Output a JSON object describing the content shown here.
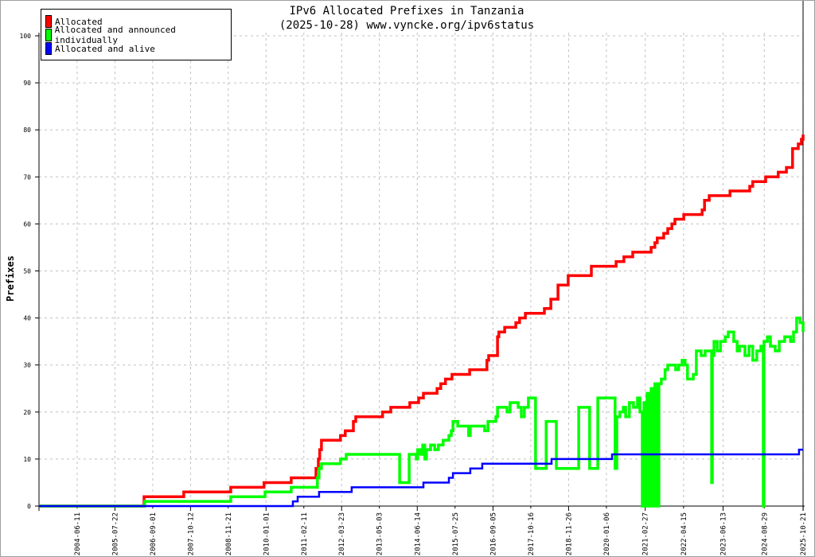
{
  "chart_data": {
    "type": "line",
    "title": "IPv6 Allocated Prefixes in Tanzania",
    "subtitle": "(2025-10-28) www.vyncke.org/ipv6status",
    "xlabel": "",
    "ylabel": "Prefixes",
    "ylim": [
      0,
      100
    ],
    "xlim": [
      2003.32,
      2025.8
    ],
    "grid": true,
    "legend_position": "top-left",
    "y_ticks": [
      "0",
      "10",
      "20",
      "30",
      "40",
      "50",
      "60",
      "70",
      "80",
      "90",
      "100"
    ],
    "x_ticks": [
      "2004-06-11",
      "2005-07-22",
      "2006-09-01",
      "2007-10-12",
      "2008-11-21",
      "2010-01-01",
      "2011-02-11",
      "2012-03-23",
      "2013-05-03",
      "2014-06-14",
      "2015-07-25",
      "2016-09-05",
      "2017-10-16",
      "2018-11-26",
      "2020-01-06",
      "2021-02-27",
      "2022-04-15",
      "2023-06-13",
      "2024-08-29",
      "2025-10-21"
    ],
    "series": [
      {
        "name": "Allocated",
        "color": "#ff0000",
        "points": [
          [
            2003.32,
            0
          ],
          [
            2006.41,
            2
          ],
          [
            2007.58,
            3
          ],
          [
            2008.96,
            4
          ],
          [
            2009.94,
            5
          ],
          [
            2010.74,
            6
          ],
          [
            2011.47,
            8
          ],
          [
            2011.54,
            10
          ],
          [
            2011.58,
            12
          ],
          [
            2011.63,
            14
          ],
          [
            2012.19,
            15
          ],
          [
            2012.33,
            16
          ],
          [
            2012.57,
            18
          ],
          [
            2012.64,
            19
          ],
          [
            2013.43,
            20
          ],
          [
            2013.67,
            21
          ],
          [
            2014.23,
            22
          ],
          [
            2014.49,
            23
          ],
          [
            2014.63,
            24
          ],
          [
            2015.03,
            25
          ],
          [
            2015.14,
            26
          ],
          [
            2015.28,
            27
          ],
          [
            2015.47,
            28
          ],
          [
            2015.99,
            29
          ],
          [
            2016.5,
            31
          ],
          [
            2016.55,
            32
          ],
          [
            2016.81,
            36
          ],
          [
            2016.85,
            37
          ],
          [
            2017.02,
            38
          ],
          [
            2017.35,
            39
          ],
          [
            2017.46,
            40
          ],
          [
            2017.63,
            41
          ],
          [
            2018.19,
            42
          ],
          [
            2018.38,
            44
          ],
          [
            2018.59,
            47
          ],
          [
            2018.89,
            49
          ],
          [
            2019.57,
            51
          ],
          [
            2020.3,
            52
          ],
          [
            2020.53,
            53
          ],
          [
            2020.79,
            54
          ],
          [
            2021.33,
            55
          ],
          [
            2021.44,
            56
          ],
          [
            2021.51,
            57
          ],
          [
            2021.7,
            58
          ],
          [
            2021.82,
            59
          ],
          [
            2021.94,
            60
          ],
          [
            2022.03,
            61
          ],
          [
            2022.29,
            62
          ],
          [
            2022.83,
            63
          ],
          [
            2022.9,
            65
          ],
          [
            2023.04,
            66
          ],
          [
            2023.65,
            67
          ],
          [
            2024.23,
            68
          ],
          [
            2024.32,
            69
          ],
          [
            2024.7,
            70
          ],
          [
            2025.07,
            71
          ],
          [
            2025.31,
            72
          ],
          [
            2025.49,
            76
          ],
          [
            2025.66,
            77
          ],
          [
            2025.75,
            78
          ],
          [
            2025.8,
            79
          ]
        ]
      },
      {
        "name": "Allocated and announced individually",
        "color": "#00ff00",
        "points": [
          [
            2003.32,
            0
          ],
          [
            2006.43,
            1
          ],
          [
            2008.96,
            2
          ],
          [
            2009.97,
            3
          ],
          [
            2010.74,
            4
          ],
          [
            2011.51,
            6
          ],
          [
            2011.56,
            8
          ],
          [
            2011.63,
            9
          ],
          [
            2012.19,
            10
          ],
          [
            2012.36,
            11
          ],
          [
            2013.93,
            5
          ],
          [
            2014.21,
            11
          ],
          [
            2014.42,
            10
          ],
          [
            2014.46,
            12
          ],
          [
            2014.53,
            11
          ],
          [
            2014.61,
            13
          ],
          [
            2014.67,
            10
          ],
          [
            2014.72,
            12
          ],
          [
            2014.84,
            13
          ],
          [
            2014.96,
            12
          ],
          [
            2015.07,
            13
          ],
          [
            2015.21,
            14
          ],
          [
            2015.38,
            15
          ],
          [
            2015.45,
            16
          ],
          [
            2015.5,
            18
          ],
          [
            2015.64,
            17
          ],
          [
            2015.96,
            15
          ],
          [
            2016.01,
            17
          ],
          [
            2016.43,
            16
          ],
          [
            2016.53,
            18
          ],
          [
            2016.76,
            19
          ],
          [
            2016.81,
            21
          ],
          [
            2017.09,
            20
          ],
          [
            2017.18,
            22
          ],
          [
            2017.42,
            21
          ],
          [
            2017.51,
            19
          ],
          [
            2017.6,
            21
          ],
          [
            2017.72,
            23
          ],
          [
            2017.93,
            8
          ],
          [
            2018.24,
            18
          ],
          [
            2018.54,
            8
          ],
          [
            2019.2,
            21
          ],
          [
            2019.52,
            8
          ],
          [
            2019.76,
            23
          ],
          [
            2020.27,
            8
          ],
          [
            2020.32,
            19
          ],
          [
            2020.41,
            20
          ],
          [
            2020.51,
            21
          ],
          [
            2020.58,
            19
          ],
          [
            2020.69,
            22
          ],
          [
            2020.81,
            21
          ],
          [
            2020.93,
            23
          ],
          [
            2021.0,
            20
          ],
          [
            2021.07,
            0
          ],
          [
            2021.12,
            22
          ],
          [
            2021.16,
            0
          ],
          [
            2021.21,
            24
          ],
          [
            2021.28,
            0
          ],
          [
            2021.33,
            25
          ],
          [
            2021.4,
            0
          ],
          [
            2021.44,
            26
          ],
          [
            2021.51,
            0
          ],
          [
            2021.56,
            26
          ],
          [
            2021.63,
            27
          ],
          [
            2021.74,
            29
          ],
          [
            2021.82,
            30
          ],
          [
            2022.05,
            29
          ],
          [
            2022.14,
            30
          ],
          [
            2022.24,
            31
          ],
          [
            2022.33,
            30
          ],
          [
            2022.4,
            27
          ],
          [
            2022.57,
            28
          ],
          [
            2022.66,
            33
          ],
          [
            2022.8,
            32
          ],
          [
            2022.92,
            33
          ],
          [
            2023.11,
            5
          ],
          [
            2023.13,
            32
          ],
          [
            2023.18,
            35
          ],
          [
            2023.27,
            33
          ],
          [
            2023.37,
            35
          ],
          [
            2023.51,
            36
          ],
          [
            2023.6,
            37
          ],
          [
            2023.76,
            35
          ],
          [
            2023.86,
            33
          ],
          [
            2023.93,
            34
          ],
          [
            2024.09,
            32
          ],
          [
            2024.21,
            34
          ],
          [
            2024.32,
            31
          ],
          [
            2024.44,
            33
          ],
          [
            2024.56,
            34
          ],
          [
            2024.63,
            0
          ],
          [
            2024.65,
            35
          ],
          [
            2024.75,
            36
          ],
          [
            2024.84,
            34
          ],
          [
            2024.98,
            33
          ],
          [
            2025.1,
            35
          ],
          [
            2025.26,
            36
          ],
          [
            2025.43,
            35
          ],
          [
            2025.52,
            37
          ],
          [
            2025.61,
            40
          ],
          [
            2025.71,
            39
          ],
          [
            2025.8,
            37
          ]
        ]
      },
      {
        "name": "Allocated and alive",
        "color": "#0000ff",
        "points": [
          [
            2003.32,
            0
          ],
          [
            2010.79,
            1
          ],
          [
            2010.93,
            2
          ],
          [
            2011.56,
            3
          ],
          [
            2012.52,
            4
          ],
          [
            2014.63,
            5
          ],
          [
            2015.38,
            6
          ],
          [
            2015.5,
            7
          ],
          [
            2016.01,
            8
          ],
          [
            2016.36,
            9
          ],
          [
            2018.4,
            10
          ],
          [
            2020.18,
            11
          ],
          [
            2025.68,
            12
          ],
          [
            2025.8,
            12
          ]
        ]
      }
    ]
  }
}
